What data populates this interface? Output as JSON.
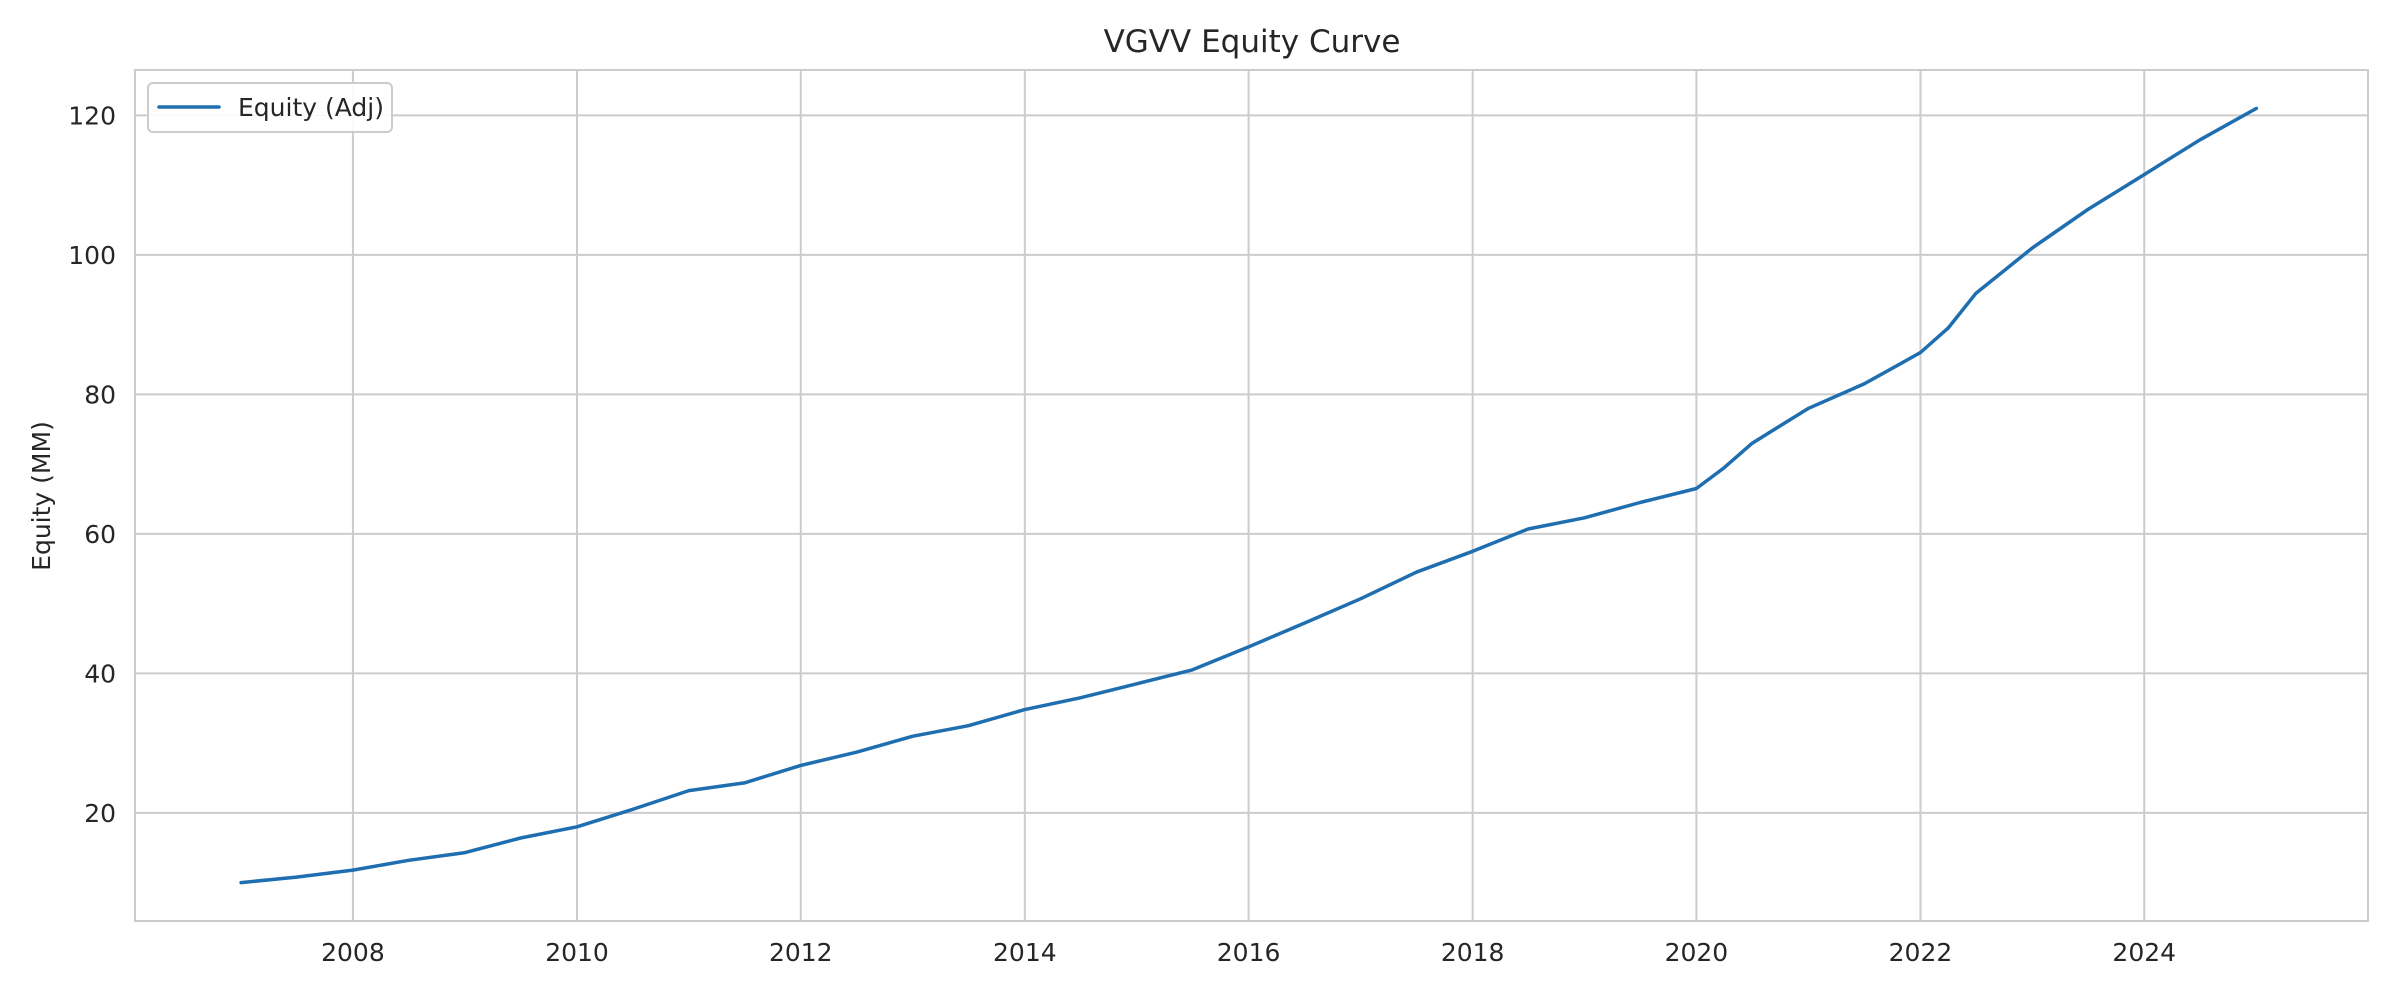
{
  "chart_data": {
    "type": "line",
    "title": "VGVV Equity Curve",
    "xlabel": "",
    "ylabel": "Equity (MM)",
    "x_tick_labels": [
      "2008",
      "2010",
      "2012",
      "2014",
      "2016",
      "2018",
      "2020",
      "2022",
      "2024"
    ],
    "y_tick_labels": [
      "20",
      "40",
      "60",
      "80",
      "100",
      "120"
    ],
    "xlim": [
      "2006-01-20",
      "2025-12-31"
    ],
    "ylim": [
      4.5,
      126.5
    ],
    "grid": true,
    "legend_position": "top-left",
    "series": [
      {
        "name": "Equity (Adj)",
        "color": "#1f6eb0",
        "x": [
          "2007-01-01",
          "2007-07-01",
          "2008-01-01",
          "2008-07-01",
          "2009-01-01",
          "2009-07-01",
          "2010-01-01",
          "2010-07-01",
          "2011-01-01",
          "2011-07-01",
          "2012-01-01",
          "2012-07-01",
          "2013-01-01",
          "2013-07-01",
          "2014-01-01",
          "2014-07-01",
          "2015-01-01",
          "2015-07-01",
          "2016-01-01",
          "2016-07-01",
          "2017-01-01",
          "2017-07-01",
          "2018-01-01",
          "2018-07-01",
          "2019-01-01",
          "2019-07-01",
          "2020-01-01",
          "2020-04-01",
          "2020-07-01",
          "2021-01-01",
          "2021-07-01",
          "2022-01-01",
          "2022-04-01",
          "2022-07-01",
          "2023-01-01",
          "2023-07-01",
          "2024-01-01",
          "2024-07-01",
          "2025-01-01"
        ],
        "values": [
          10.0,
          10.8,
          11.8,
          13.2,
          14.3,
          16.4,
          18.0,
          20.5,
          23.2,
          24.3,
          26.8,
          28.7,
          31.0,
          32.5,
          34.8,
          36.5,
          38.5,
          40.5,
          43.8,
          47.2,
          50.7,
          54.5,
          57.5,
          60.7,
          62.3,
          64.5,
          66.5,
          69.5,
          73.0,
          78.0,
          81.5,
          86.0,
          89.5,
          94.5,
          101.0,
          106.5,
          111.5,
          116.5,
          121.0
        ]
      }
    ]
  }
}
